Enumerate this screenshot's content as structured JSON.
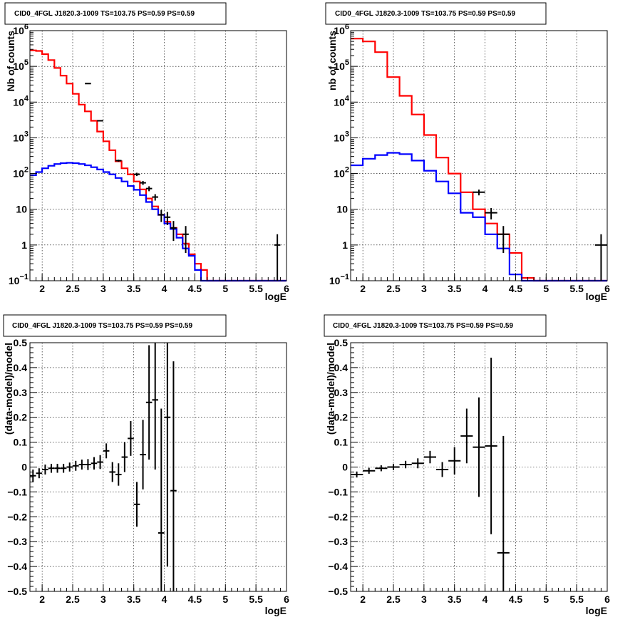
{
  "chart_data": [
    {
      "type": "line",
      "title": "CID0_4FGL J1820.3-1009 TS=103.75 PS=0.59 PS=0.59",
      "xlabel": "logE",
      "ylabel": "Nb of counts",
      "xlim": [
        1.8,
        6.0
      ],
      "ylim": [
        0.1,
        1000000
      ],
      "yscale": "log",
      "grid": true,
      "x_ticks": [
        "2",
        "2.5",
        "3",
        "3.5",
        "4",
        "4.5",
        "5",
        "5.5",
        "6"
      ],
      "y_ticks": [
        {
          "value": 0.1,
          "base": "10",
          "exp": "−1"
        },
        {
          "value": 1,
          "base": "1",
          "exp": ""
        },
        {
          "value": 10,
          "base": "10",
          "exp": ""
        },
        {
          "value": 100,
          "base": "10",
          "exp": "2"
        },
        {
          "value": 1000,
          "base": "10",
          "exp": "3"
        },
        {
          "value": 10000,
          "base": "10",
          "exp": "4"
        },
        {
          "value": 100000,
          "base": "10",
          "exp": "5"
        },
        {
          "value": 1000000,
          "base": "10",
          "exp": "6"
        }
      ],
      "bin_edges": [
        1.8,
        1.9,
        2.0,
        2.1,
        2.2,
        2.3,
        2.4,
        2.5,
        2.6,
        2.7,
        2.8,
        2.9,
        3.0,
        3.1,
        3.2,
        3.3,
        3.4,
        3.5,
        3.6,
        3.7,
        3.8,
        3.9,
        4.0,
        4.1,
        4.2,
        4.3,
        4.4,
        4.5,
        4.6,
        4.7,
        4.8,
        4.9,
        5.0,
        5.1,
        5.2,
        5.3,
        5.4,
        5.5,
        5.6,
        5.7,
        5.8,
        5.9,
        6.0
      ],
      "series": [
        {
          "color": "#ff0000",
          "step": true,
          "values": [
            280000,
            270000,
            220000,
            150000,
            90000,
            55000,
            33000,
            17000,
            8500,
            5500,
            3000,
            1500,
            800,
            450,
            220,
            140,
            95,
            60,
            36,
            20,
            12,
            7,
            4.5,
            3,
            2,
            1.1,
            0.55,
            0.3,
            0.2,
            0.1,
            0.1,
            0.1,
            0.1,
            0.1,
            0.1,
            0.1,
            0.1,
            0.1,
            0.1,
            0.1,
            0.1,
            0.1
          ]
        },
        {
          "color": "#0000ff",
          "step": true,
          "values": [
            90,
            110,
            140,
            165,
            185,
            195,
            200,
            195,
            185,
            170,
            150,
            130,
            110,
            95,
            75,
            60,
            45,
            35,
            25,
            16,
            10,
            7,
            4,
            2.8,
            1.6,
            0.8,
            0.5,
            0.2,
            0.1,
            0.1,
            0.1,
            0.1,
            0.1,
            0.1,
            0.1,
            0.1,
            0.1,
            0.1,
            0.1,
            0.1,
            0.1,
            0.1
          ]
        },
        {
          "color": "#000000",
          "type": "errorbar",
          "points": [
            {
              "x": 2.75,
              "y": 33000,
              "ylo": 32800,
              "yhi": 33200
            },
            {
              "x": 2.95,
              "y": 3000,
              "ylo": 2940,
              "yhi": 3060
            },
            {
              "x": 3.25,
              "y": 230,
              "ylo": 215,
              "yhi": 245
            },
            {
              "x": 3.55,
              "y": 95,
              "ylo": 85,
              "yhi": 105
            },
            {
              "x": 3.65,
              "y": 55,
              "ylo": 48,
              "yhi": 62
            },
            {
              "x": 3.75,
              "y": 38,
              "ylo": 32,
              "yhi": 44
            },
            {
              "x": 3.85,
              "y": 22,
              "ylo": 17.5,
              "yhi": 26.5
            },
            {
              "x": 3.95,
              "y": 7,
              "ylo": 4.4,
              "yhi": 9.6
            },
            {
              "x": 4.05,
              "y": 6,
              "ylo": 3.6,
              "yhi": 8.4
            },
            {
              "x": 4.15,
              "y": 3,
              "ylo": 1.3,
              "yhi": 4.7
            },
            {
              "x": 4.35,
              "y": 2,
              "ylo": 0.6,
              "yhi": 3.4
            },
            {
              "x": 5.85,
              "y": 1,
              "ylo": 0.1,
              "yhi": 2
            }
          ]
        }
      ]
    },
    {
      "type": "line",
      "title": "CID0_4FGL J1820.3-1009 TS=103.75 PS=0.59 PS=0.59",
      "xlabel": "logE",
      "ylabel": "nb of counts",
      "xlim": [
        1.8,
        6.0
      ],
      "ylim": [
        0.1,
        1000000
      ],
      "yscale": "log",
      "grid": true,
      "x_ticks": [
        "2",
        "2.5",
        "3",
        "3.5",
        "4",
        "4.5",
        "5",
        "5.5",
        "6"
      ],
      "y_ticks": [
        {
          "value": 0.1,
          "base": "10",
          "exp": "−1"
        },
        {
          "value": 1,
          "base": "1",
          "exp": ""
        },
        {
          "value": 10,
          "base": "10",
          "exp": ""
        },
        {
          "value": 100,
          "base": "10",
          "exp": "2"
        },
        {
          "value": 1000,
          "base": "10",
          "exp": "3"
        },
        {
          "value": 10000,
          "base": "10",
          "exp": "4"
        },
        {
          "value": 100000,
          "base": "10",
          "exp": "5"
        },
        {
          "value": 1000000,
          "base": "10",
          "exp": "6"
        }
      ],
      "bin_edges": [
        1.8,
        2.0,
        2.2,
        2.4,
        2.6,
        2.8,
        3.0,
        3.2,
        3.4,
        3.6,
        3.8,
        4.0,
        4.2,
        4.4,
        4.6,
        4.8,
        5.0,
        5.2,
        5.4,
        5.6,
        5.8,
        6.0
      ],
      "series": [
        {
          "color": "#ff0000",
          "step": true,
          "values": [
            600000,
            500000,
            250000,
            50000,
            15000,
            4500,
            1200,
            280,
            100,
            30,
            10,
            4,
            2,
            0.6,
            0.12,
            0.1,
            0.1,
            0.1,
            0.1,
            0.1,
            0.1
          ]
        },
        {
          "color": "#0000ff",
          "step": true,
          "values": [
            170,
            260,
            330,
            380,
            350,
            230,
            120,
            60,
            28,
            8,
            6,
            2,
            0.8,
            0.15,
            0.1,
            0.1,
            0.1,
            0.1,
            0.1,
            0.1,
            0.1
          ]
        },
        {
          "color": "#000000",
          "type": "errorbar",
          "points": [
            {
              "x": 3.9,
              "y": 30,
              "ylo": 24.5,
              "yhi": 35.5
            },
            {
              "x": 4.1,
              "y": 8,
              "ylo": 5.2,
              "yhi": 10.8
            },
            {
              "x": 4.3,
              "y": 2,
              "ylo": 0.6,
              "yhi": 3.4
            },
            {
              "x": 5.9,
              "y": 1,
              "ylo": 0.1,
              "yhi": 2
            }
          ]
        }
      ]
    },
    {
      "type": "scatter",
      "title": "CID0_4FGL J1820.3-1009 TS=103.75 PS=0.59 PS=0.59",
      "xlabel": "logE",
      "ylabel": "(data-model)/model",
      "xlim": [
        1.8,
        6.0
      ],
      "ylim": [
        -0.5,
        0.5
      ],
      "grid": true,
      "x_ticks": [
        "2",
        "2.5",
        "3",
        "3.5",
        "4",
        "4.5",
        "5",
        "5.5",
        "6"
      ],
      "y_ticks": [
        "−0.5",
        "−0.4",
        "−0.3",
        "−0.2",
        "−0.1",
        "0",
        "0.1",
        "0.2",
        "0.3",
        "0.4",
        "0.5"
      ],
      "xhalfwidth": 0.05,
      "points": [
        {
          "x": 1.85,
          "y": -0.035,
          "err": 0.025
        },
        {
          "x": 1.95,
          "y": -0.025,
          "err": 0.02
        },
        {
          "x": 2.05,
          "y": -0.01,
          "err": 0.02
        },
        {
          "x": 2.15,
          "y": -0.005,
          "err": 0.018
        },
        {
          "x": 2.25,
          "y": -0.005,
          "err": 0.018
        },
        {
          "x": 2.35,
          "y": -0.005,
          "err": 0.018
        },
        {
          "x": 2.45,
          "y": 0.0,
          "err": 0.018
        },
        {
          "x": 2.55,
          "y": 0.005,
          "err": 0.02
        },
        {
          "x": 2.65,
          "y": 0.01,
          "err": 0.02
        },
        {
          "x": 2.75,
          "y": 0.01,
          "err": 0.022
        },
        {
          "x": 2.85,
          "y": 0.015,
          "err": 0.025
        },
        {
          "x": 2.95,
          "y": 0.02,
          "err": 0.028
        },
        {
          "x": 3.05,
          "y": 0.065,
          "err": 0.03
        },
        {
          "x": 3.15,
          "y": -0.02,
          "err": 0.04
        },
        {
          "x": 3.25,
          "y": -0.03,
          "err": 0.045
        },
        {
          "x": 3.35,
          "y": 0.04,
          "err": 0.06
        },
        {
          "x": 3.45,
          "y": 0.115,
          "err": 0.07
        },
        {
          "x": 3.55,
          "y": -0.15,
          "err": 0.09
        },
        {
          "x": 3.65,
          "y": 0.05,
          "err": 0.14
        },
        {
          "x": 3.75,
          "y": 0.26,
          "err": 0.23
        },
        {
          "x": 3.85,
          "y": 0.27,
          "err": 0.28
        },
        {
          "x": 3.95,
          "y": -0.265,
          "err": 0.5
        },
        {
          "x": 4.05,
          "y": 0.2,
          "err": 0.6
        },
        {
          "x": 4.15,
          "y": -0.095,
          "err": 0.52
        }
      ]
    },
    {
      "type": "scatter",
      "title": "CID0_4FGL J1820.3-1009 TS=103.75 PS=0.59 PS=0.59",
      "xlabel": "logE",
      "ylabel": "(data-model)/model",
      "xlim": [
        1.8,
        6.0
      ],
      "ylim": [
        -0.5,
        0.5
      ],
      "grid": true,
      "x_ticks": [
        "2",
        "2.5",
        "3",
        "3.5",
        "4",
        "4.5",
        "5",
        "5.5",
        "6"
      ],
      "y_ticks": [
        "−0.5",
        "−0.4",
        "−0.3",
        "−0.2",
        "−0.1",
        "0",
        "0.1",
        "0.2",
        "0.3",
        "0.4",
        "0.5"
      ],
      "xhalfwidth": 0.1,
      "points": [
        {
          "x": 1.9,
          "y": -0.03,
          "err": 0.012
        },
        {
          "x": 2.1,
          "y": -0.015,
          "err": 0.012
        },
        {
          "x": 2.3,
          "y": -0.005,
          "err": 0.012
        },
        {
          "x": 2.5,
          "y": 0.0,
          "err": 0.012
        },
        {
          "x": 2.7,
          "y": 0.01,
          "err": 0.015
        },
        {
          "x": 2.9,
          "y": 0.015,
          "err": 0.02
        },
        {
          "x": 3.1,
          "y": 0.04,
          "err": 0.025
        },
        {
          "x": 3.3,
          "y": -0.01,
          "err": 0.03
        },
        {
          "x": 3.5,
          "y": 0.025,
          "err": 0.055
        },
        {
          "x": 3.7,
          "y": 0.125,
          "err": 0.11
        },
        {
          "x": 3.9,
          "y": 0.08,
          "err": 0.2
        },
        {
          "x": 4.1,
          "y": 0.085,
          "err": 0.355
        },
        {
          "x": 4.3,
          "y": -0.345,
          "err": 0.47
        }
      ]
    }
  ]
}
